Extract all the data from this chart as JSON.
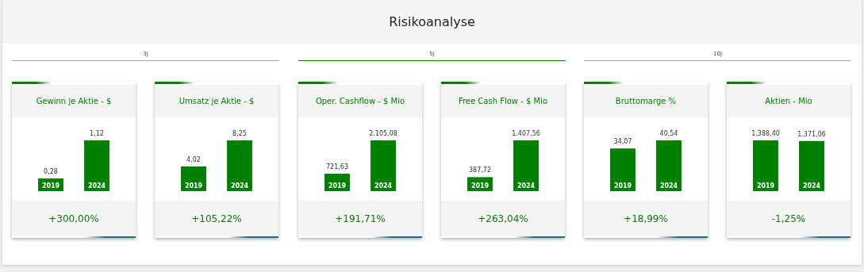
{
  "chart_data": [
    {
      "type": "other",
      "title": "Risikoanalyse",
      "annotations": [
        "3J",
        "5J",
        "10J"
      ]
    },
    {
      "type": "bar",
      "title": "Gewinn je Aktie - $",
      "categories": [
        "2019",
        "2024"
      ],
      "values": [
        0.28,
        1.12
      ],
      "value_labels": [
        "0,28",
        "1,12"
      ],
      "color": "#008000",
      "annotations": [
        "+300,00%"
      ]
    },
    {
      "type": "bar",
      "title": "Umsatz je Aktie - $",
      "categories": [
        "2019",
        "2024"
      ],
      "values": [
        4.02,
        8.25
      ],
      "value_labels": [
        "4,02",
        "8,25"
      ],
      "color": "#008000",
      "annotations": [
        "+105,22%"
      ]
    },
    {
      "type": "bar",
      "title": "Oper. Cashflow - $ Mio",
      "categories": [
        "2019",
        "2024"
      ],
      "values": [
        721.63,
        2105.08
      ],
      "value_labels": [
        "721,63",
        "2.105,08"
      ],
      "color": "#008000",
      "annotations": [
        "+191,71%"
      ]
    },
    {
      "type": "bar",
      "title": "Free Cash Flow - $ Mio",
      "categories": [
        "2019",
        "2024"
      ],
      "values": [
        387.72,
        1407.56
      ],
      "value_labels": [
        "387,72",
        "1.407,56"
      ],
      "color": "#008000",
      "annotations": [
        "+263,04%"
      ]
    },
    {
      "type": "bar",
      "title": "Bruttomarge %",
      "categories": [
        "2019",
        "2024"
      ],
      "values": [
        34.07,
        40.54
      ],
      "value_labels": [
        "34,07",
        "40,54"
      ],
      "color": "#008000",
      "annotations": [
        "+18,99%"
      ]
    },
    {
      "type": "bar",
      "title": "Aktien - Mio",
      "categories": [
        "2019",
        "2024"
      ],
      "values": [
        1388.4,
        1371.06
      ],
      "value_labels": [
        "1.388,40",
        "1.371,06"
      ],
      "color": "#008000",
      "annotations": [
        "-1,25%"
      ]
    }
  ]
}
